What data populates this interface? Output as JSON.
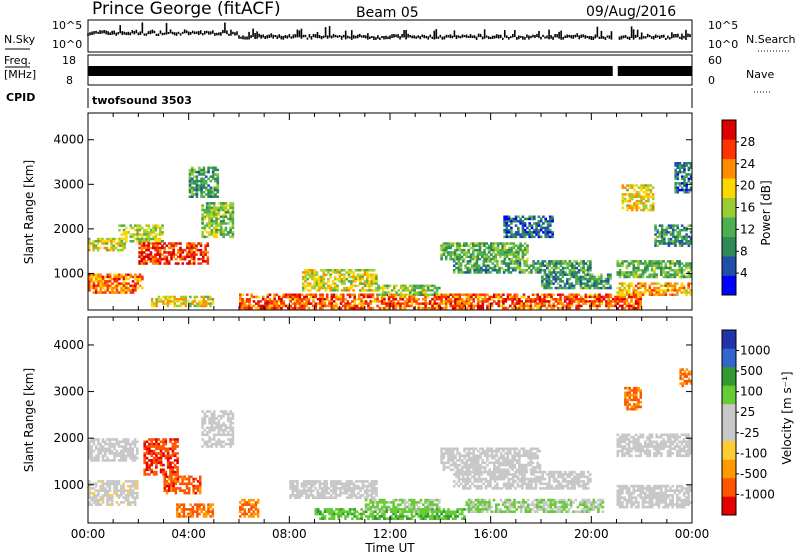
{
  "header": {
    "title": "Prince George (fitACF)",
    "beam": "Beam 05",
    "date": "09/Aug/2016"
  },
  "strips": {
    "nsky_label": "N.Sky",
    "nsky_ticks": [
      "10^5",
      "10^0"
    ],
    "nsearch_label": "N.Search",
    "nsearch_ticks": [
      "10^5",
      "10^0"
    ],
    "freq_label_1": "Freq.",
    "freq_label_2": "[MHz]",
    "freq_ticks": [
      "18",
      "8"
    ],
    "nave_label": "Nave",
    "nave_ticks": [
      "60",
      "0"
    ],
    "cpid_label": "CPID",
    "cpid_value": "twofsound 3503"
  },
  "colors": {
    "power_scale": [
      "#0000ff",
      "#1f4fa8",
      "#2e8b57",
      "#4caf50",
      "#9acd32",
      "#ffd700",
      "#ff8c00",
      "#ff3300",
      "#dd0000"
    ],
    "velocity_scale": [
      "#e60000",
      "#ff5500",
      "#ff9900",
      "#ffcc33",
      "#c8c8c8",
      "#c8c8c8",
      "#66cc33",
      "#339933",
      "#3366cc",
      "#2233aa"
    ]
  },
  "chart_data": [
    {
      "type": "heatmap",
      "name": "power",
      "title": "",
      "xlabel": "",
      "ylabel": "Slant Range [km]",
      "x_ticks": [
        "00:00",
        "04:00",
        "08:00",
        "12:00",
        "16:00",
        "20:00",
        "00:00"
      ],
      "x_range_hours": [
        0,
        24
      ],
      "y_ticks": [
        1000,
        2000,
        3000,
        4000
      ],
      "ylim": [
        180,
        4600
      ],
      "colorbar": {
        "label": "Power [dB]",
        "ticks": [
          4,
          8,
          12,
          16,
          20,
          24,
          28
        ],
        "range": [
          0,
          32
        ]
      },
      "echo_regions": [
        {
          "x": [
            0.0,
            1.5
          ],
          "y": [
            1500,
            1800
          ],
          "level": 0.55
        },
        {
          "x": [
            0.0,
            2.2
          ],
          "y": [
            550,
            1000
          ],
          "level": 0.75
        },
        {
          "x": [
            1.2,
            3.0
          ],
          "y": [
            1700,
            2100
          ],
          "level": 0.5
        },
        {
          "x": [
            2.0,
            4.8
          ],
          "y": [
            1200,
            1700
          ],
          "level": 0.85
        },
        {
          "x": [
            4.5,
            5.8
          ],
          "y": [
            1800,
            2600
          ],
          "level": 0.45
        },
        {
          "x": [
            4.0,
            5.2
          ],
          "y": [
            2700,
            3400
          ],
          "level": 0.35
        },
        {
          "x": [
            2.5,
            5.0
          ],
          "y": [
            250,
            500
          ],
          "level": 0.6
        },
        {
          "x": [
            6.0,
            22.0
          ],
          "y": [
            200,
            550
          ],
          "level": 0.8
        },
        {
          "x": [
            8.5,
            11.5
          ],
          "y": [
            600,
            1100
          ],
          "level": 0.55
        },
        {
          "x": [
            11.5,
            14.0
          ],
          "y": [
            500,
            750
          ],
          "level": 0.45
        },
        {
          "x": [
            14.0,
            17.5
          ],
          "y": [
            1300,
            1700
          ],
          "level": 0.4
        },
        {
          "x": [
            14.5,
            20.0
          ],
          "y": [
            1000,
            1300
          ],
          "level": 0.35
        },
        {
          "x": [
            18.0,
            20.8
          ],
          "y": [
            650,
            1000
          ],
          "level": 0.3
        },
        {
          "x": [
            16.5,
            18.5
          ],
          "y": [
            1800,
            2300
          ],
          "level": 0.2
        },
        {
          "x": [
            21.0,
            24.0
          ],
          "y": [
            500,
            800
          ],
          "level": 0.7
        },
        {
          "x": [
            21.0,
            24.0
          ],
          "y": [
            900,
            1300
          ],
          "level": 0.4
        },
        {
          "x": [
            21.2,
            22.5
          ],
          "y": [
            2400,
            3000
          ],
          "level": 0.6
        },
        {
          "x": [
            22.5,
            24.0
          ],
          "y": [
            1600,
            2100
          ],
          "level": 0.3
        },
        {
          "x": [
            23.3,
            24.0
          ],
          "y": [
            2800,
            3500
          ],
          "level": 0.25
        }
      ]
    },
    {
      "type": "heatmap",
      "name": "velocity",
      "title": "",
      "xlabel": "Time UT",
      "ylabel": "Slant Range [km]",
      "x_ticks": [
        "00:00",
        "04:00",
        "08:00",
        "12:00",
        "16:00",
        "20:00",
        "00:00"
      ],
      "x_range_hours": [
        0,
        24
      ],
      "y_ticks": [
        1000,
        2000,
        3000,
        4000
      ],
      "ylim": [
        180,
        4600
      ],
      "colorbar": {
        "label": "Velocity [m s⁻¹]",
        "ticks": [
          "1000",
          "500",
          "100",
          "25",
          "-25",
          "-100",
          "-500",
          "-1000"
        ]
      },
      "echo_regions": [
        {
          "x": [
            0.0,
            2.0
          ],
          "y": [
            1500,
            2000
          ],
          "level": 0.5
        },
        {
          "x": [
            0.0,
            2.0
          ],
          "y": [
            550,
            1100
          ],
          "level": 0.45
        },
        {
          "x": [
            2.2,
            3.6
          ],
          "y": [
            1200,
            2000
          ],
          "level": 0.12
        },
        {
          "x": [
            3.0,
            4.5
          ],
          "y": [
            800,
            1200
          ],
          "level": 0.15
        },
        {
          "x": [
            3.5,
            5.0
          ],
          "y": [
            300,
            600
          ],
          "level": 0.2
        },
        {
          "x": [
            4.5,
            5.8
          ],
          "y": [
            1800,
            2600
          ],
          "level": 0.5
        },
        {
          "x": [
            6.0,
            6.8
          ],
          "y": [
            300,
            700
          ],
          "level": 0.2
        },
        {
          "x": [
            8.0,
            11.5
          ],
          "y": [
            700,
            1100
          ],
          "level": 0.5
        },
        {
          "x": [
            9.0,
            15.0
          ],
          "y": [
            250,
            500
          ],
          "level": 0.68
        },
        {
          "x": [
            11.0,
            14.0
          ],
          "y": [
            400,
            700
          ],
          "level": 0.62
        },
        {
          "x": [
            14.0,
            18.0
          ],
          "y": [
            1300,
            1800
          ],
          "level": 0.5
        },
        {
          "x": [
            14.5,
            20.0
          ],
          "y": [
            900,
            1300
          ],
          "level": 0.5
        },
        {
          "x": [
            15.0,
            20.5
          ],
          "y": [
            400,
            700
          ],
          "level": 0.6
        },
        {
          "x": [
            21.0,
            24.0
          ],
          "y": [
            500,
            1000
          ],
          "level": 0.5
        },
        {
          "x": [
            21.0,
            24.0
          ],
          "y": [
            1600,
            2100
          ],
          "level": 0.5
        },
        {
          "x": [
            21.3,
            22.0
          ],
          "y": [
            2600,
            3100
          ],
          "level": 0.18
        },
        {
          "x": [
            23.5,
            24.0
          ],
          "y": [
            3100,
            3500
          ],
          "level": 0.2
        }
      ]
    }
  ]
}
